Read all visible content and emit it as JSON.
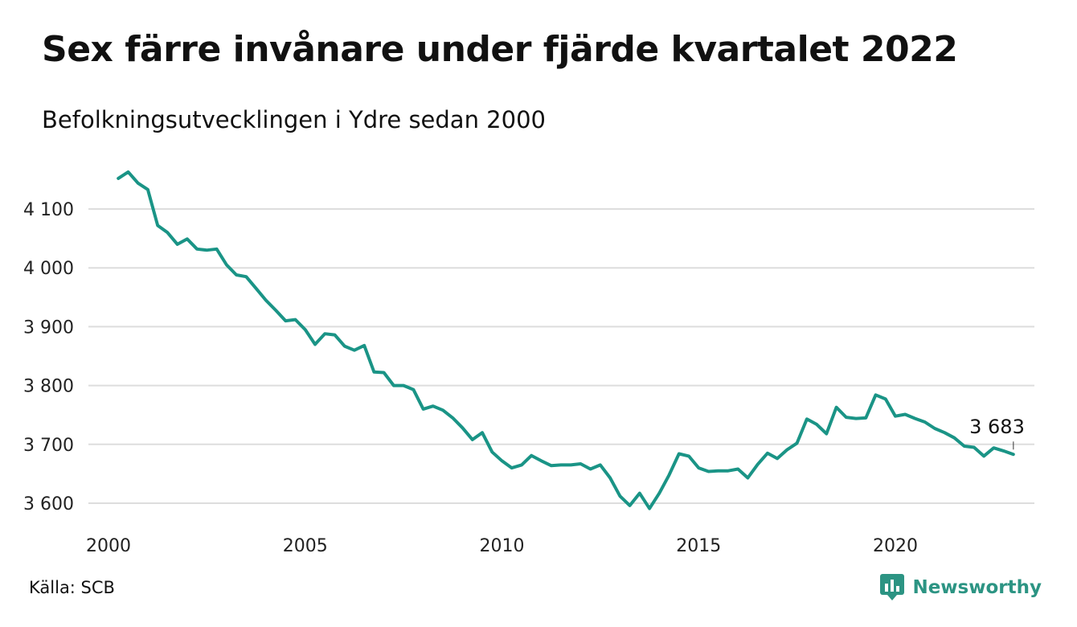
{
  "title": "Sex färre invånare under fjärde kvartalet 2022",
  "subtitle": "Befolkningsutvecklingen i Ydre sedan 2000",
  "source": "Källa: SCB",
  "brand": {
    "name": "Newsworthy",
    "icon": "newsworthy-logo-icon",
    "color": "#2c9483"
  },
  "colors": {
    "line": "#1a9486",
    "grid": "#dddddd"
  },
  "chart_data": {
    "type": "line",
    "title": "Sex färre invånare under fjärde kvartalet 2022",
    "subtitle": "Befolkningsutvecklingen i Ydre sedan 2000",
    "xlabel": "",
    "ylabel": "",
    "grid": true,
    "legend": "none",
    "xlim": [
      2000,
      2023.25
    ],
    "ylim": [
      3590,
      4165
    ],
    "x_ticks": [
      {
        "value": 2000,
        "label": "2000"
      },
      {
        "value": 2005,
        "label": "2005"
      },
      {
        "value": 2010,
        "label": "2010"
      },
      {
        "value": 2015,
        "label": "2015"
      },
      {
        "value": 2020,
        "label": "2020"
      }
    ],
    "y_ticks": [
      {
        "value": 3600,
        "label": "3 600"
      },
      {
        "value": 3700,
        "label": "3 700"
      },
      {
        "value": 3800,
        "label": "3 800"
      },
      {
        "value": 3900,
        "label": "3 900"
      },
      {
        "value": 4000,
        "label": "4 000"
      },
      {
        "value": 4100,
        "label": "4 100"
      }
    ],
    "end_label": {
      "x": "2022 Q4",
      "value": 3683,
      "label": "3 683"
    },
    "series": [
      {
        "x_start": 2000.25,
        "x_step": 0.25,
        "values": [
          4152,
          4163,
          4144,
          4133,
          4072,
          4060,
          4040,
          4049,
          4032,
          4030,
          4032,
          4005,
          3988,
          3985,
          3965,
          3945,
          3928,
          3910,
          3912,
          3895,
          3870,
          3888,
          3886,
          3867,
          3860,
          3868,
          3823,
          3822,
          3800,
          3800,
          3793,
          3760,
          3765,
          3758,
          3745,
          3728,
          3708,
          3720,
          3687,
          3672,
          3660,
          3665,
          3681,
          3672,
          3664,
          3665,
          3665,
          3667,
          3658,
          3665,
          3643,
          3612,
          3596,
          3617,
          3591,
          3617,
          3648,
          3684,
          3680,
          3660,
          3654,
          3655,
          3655,
          3658,
          3643,
          3666,
          3685,
          3676,
          3691,
          3702,
          3743,
          3734,
          3718,
          3763,
          3746,
          3744,
          3745,
          3784,
          3777,
          3748,
          3751,
          3744,
          3738,
          3727,
          3720,
          3711,
          3697,
          3695,
          3680,
          3694,
          3689,
          3683
        ]
      }
    ]
  }
}
